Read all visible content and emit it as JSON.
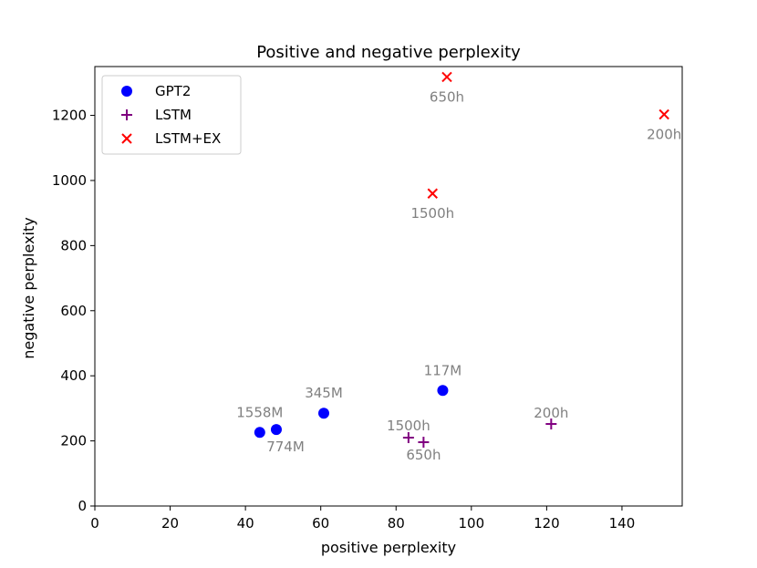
{
  "chart_data": {
    "type": "scatter",
    "title": "Positive and negative perplexity",
    "xlabel": "positive perplexity",
    "ylabel": "negative perplexity",
    "xlim": [
      0,
      156
    ],
    "ylim": [
      0,
      1350
    ],
    "xticks": [
      0,
      20,
      40,
      60,
      80,
      100,
      120,
      140
    ],
    "yticks": [
      0,
      200,
      400,
      600,
      800,
      1000,
      1200
    ],
    "grid": false,
    "legend_position": "top-left",
    "series": [
      {
        "name": "GPT2",
        "marker": "circle",
        "color": "#0000ff",
        "points": [
          {
            "x": 92.4,
            "y": 355,
            "label": "117M"
          },
          {
            "x": 60.8,
            "y": 285,
            "label": "345M"
          },
          {
            "x": 48.2,
            "y": 235,
            "label": "774M"
          },
          {
            "x": 43.8,
            "y": 226,
            "label": "1558M"
          }
        ]
      },
      {
        "name": "LSTM",
        "marker": "plus",
        "color": "#800080",
        "points": [
          {
            "x": 121.2,
            "y": 252,
            "label": "200h"
          },
          {
            "x": 87.3,
            "y": 196,
            "label": "650h"
          },
          {
            "x": 83.3,
            "y": 210,
            "label": "1500h"
          }
        ]
      },
      {
        "name": "LSTM+EX",
        "marker": "x",
        "color": "#ff0000",
        "points": [
          {
            "x": 151.2,
            "y": 1203,
            "label": "200h"
          },
          {
            "x": 93.5,
            "y": 1318,
            "label": "650h"
          },
          {
            "x": 89.7,
            "y": 960,
            "label": "1500h"
          }
        ]
      }
    ]
  }
}
